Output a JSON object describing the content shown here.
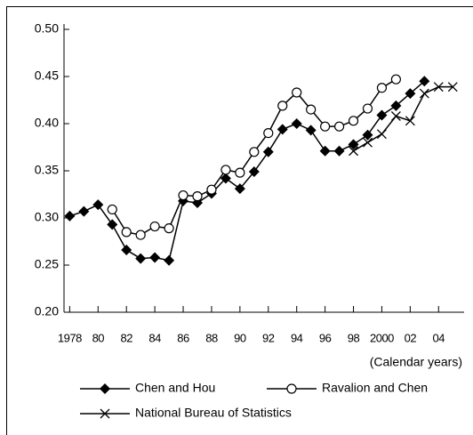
{
  "chart_data": {
    "type": "line",
    "x": [
      1978,
      1979,
      1980,
      1981,
      1982,
      1983,
      1984,
      1985,
      1986,
      1987,
      1988,
      1989,
      1990,
      1991,
      1992,
      1993,
      1994,
      1995,
      1996,
      1997,
      1998,
      1999,
      2000,
      2001,
      2002,
      2003,
      2004,
      2005
    ],
    "x_label": "(Calendar years)",
    "series": [
      {
        "name": "Chen and Hou",
        "color": "#000000",
        "marker": "diamond",
        "values": [
          0.302,
          0.307,
          0.314,
          0.293,
          0.266,
          0.257,
          0.258,
          0.255,
          0.318,
          0.316,
          0.326,
          0.342,
          0.331,
          0.349,
          0.37,
          0.394,
          0.4,
          0.393,
          0.371,
          0.371,
          0.378,
          0.388,
          0.409,
          0.419,
          0.432,
          0.445,
          null,
          null
        ]
      },
      {
        "name": "Ravalion and Chen",
        "color": "#000000",
        "marker": "circle",
        "values": [
          null,
          null,
          null,
          0.309,
          0.285,
          0.282,
          0.291,
          0.289,
          0.324,
          0.323,
          0.33,
          0.351,
          0.348,
          0.37,
          0.39,
          0.419,
          0.433,
          0.415,
          0.397,
          0.397,
          0.403,
          0.416,
          0.438,
          0.447,
          null,
          null,
          null,
          null
        ]
      },
      {
        "name": "National Bureau of Statistics",
        "color": "#000000",
        "marker": "cross",
        "values": [
          null,
          null,
          null,
          null,
          null,
          null,
          null,
          null,
          null,
          null,
          null,
          null,
          null,
          null,
          null,
          null,
          null,
          null,
          null,
          null,
          0.371,
          0.38,
          0.389,
          0.408,
          0.403,
          0.432,
          0.439,
          0.439
        ]
      }
    ],
    "xlim": [
      1977.6,
      2005.8
    ],
    "xticks": [
      {
        "value": 1978,
        "label": "1978"
      },
      {
        "value": 1980,
        "label": "80"
      },
      {
        "value": 1982,
        "label": "82"
      },
      {
        "value": 1984,
        "label": "84"
      },
      {
        "value": 1986,
        "label": "86"
      },
      {
        "value": 1988,
        "label": "88"
      },
      {
        "value": 1990,
        "label": "90"
      },
      {
        "value": 1992,
        "label": "92"
      },
      {
        "value": 1994,
        "label": "94"
      },
      {
        "value": 1996,
        "label": "96"
      },
      {
        "value": 1998,
        "label": "98"
      },
      {
        "value": 2000,
        "label": "2000"
      },
      {
        "value": 2002,
        "label": "02"
      },
      {
        "value": 2004,
        "label": "04"
      }
    ],
    "ylim": [
      0.2,
      0.5
    ],
    "yticks": [
      {
        "value": 0.2,
        "label": "0.20"
      },
      {
        "value": 0.25,
        "label": "0.25"
      },
      {
        "value": 0.3,
        "label": "0.30"
      },
      {
        "value": 0.35,
        "label": "0.35"
      },
      {
        "value": 0.4,
        "label": "0.40"
      },
      {
        "value": 0.45,
        "label": "0.45"
      },
      {
        "value": 0.5,
        "label": "0.50"
      }
    ],
    "grid": false
  }
}
